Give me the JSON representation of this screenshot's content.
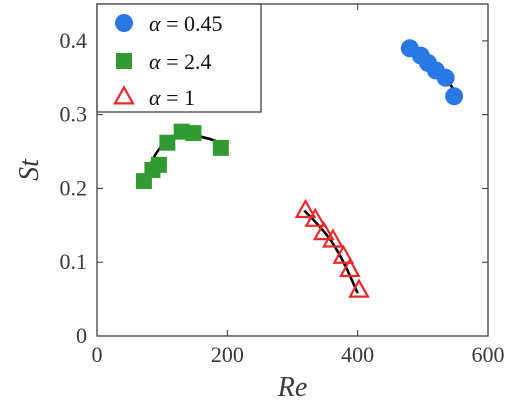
{
  "chart_data": {
    "type": "scatter",
    "xlabel": "Re",
    "ylabel": "St",
    "xlim": [
      0,
      600
    ],
    "ylim": [
      0,
      0.45
    ],
    "x_ticks": [
      0,
      200,
      400,
      600
    ],
    "y_ticks": [
      0,
      0.1,
      0.2,
      0.3,
      0.4
    ],
    "x_tick_labels": [
      "0",
      "200",
      "400",
      "600"
    ],
    "y_tick_labels": [
      "0",
      "0.1",
      "0.2",
      "0.3",
      "0.4"
    ],
    "grid": false,
    "legend_position": "top-left",
    "series": [
      {
        "name": "α = 0.45",
        "legend_symbol": "α",
        "legend_value": "= 0.45",
        "marker": "circle",
        "color": "#2b78e4",
        "x": [
          480,
          497,
          508,
          520,
          535,
          548
        ],
        "y": [
          0.39,
          0.38,
          0.37,
          0.36,
          0.35,
          0.325
        ],
        "fit": {
          "x": [
            480,
            500,
            520,
            540,
            552
          ],
          "y": [
            0.392,
            0.379,
            0.363,
            0.343,
            0.328
          ]
        }
      },
      {
        "name": "α = 2.4",
        "legend_symbol": "α",
        "legend_value": "= 2.4",
        "marker": "square",
        "color": "#339a33",
        "x": [
          72,
          85,
          95,
          108,
          130,
          148,
          190
        ],
        "y": [
          0.21,
          0.225,
          0.232,
          0.262,
          0.277,
          0.275,
          0.255
        ],
        "fit": {
          "x": [
            72,
            85,
            100,
            120,
            140,
            160,
            180,
            195
          ],
          "y": [
            0.205,
            0.238,
            0.258,
            0.27,
            0.273,
            0.27,
            0.265,
            0.258
          ]
        }
      },
      {
        "name": "α = 1",
        "legend_symbol": "α",
        "legend_value": "= 1",
        "marker": "triangle",
        "color": "#e52b2b",
        "x": [
          320,
          335,
          348,
          362,
          378,
          388,
          402
        ],
        "y": [
          0.17,
          0.158,
          0.14,
          0.13,
          0.108,
          0.09,
          0.062
        ],
        "fit": {
          "x": [
            318,
            340,
            360,
            380,
            400
          ],
          "y": [
            0.17,
            0.15,
            0.128,
            0.097,
            0.058
          ]
        }
      }
    ]
  }
}
